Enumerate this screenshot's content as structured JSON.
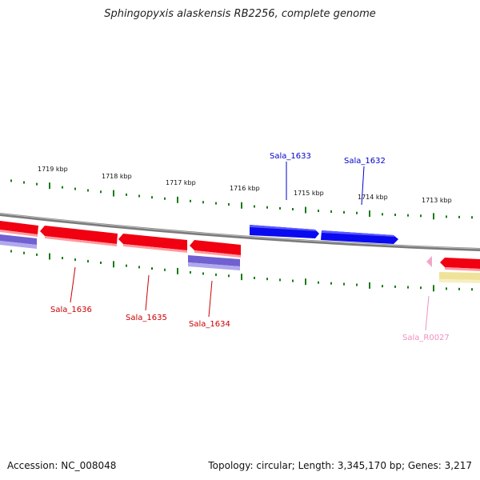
{
  "title": "Sphingopyxis alaskensis RB2256, complete genome",
  "accession": "Accession: NC_008048",
  "topology": "Topology: circular; Length: 3,345,170 bp; Genes: 3,217",
  "colors": {
    "forward_gene": "#0a0af0",
    "reverse_gene": "#f00010",
    "cds_purple": "#6a5acd",
    "rna": "#f4a6c8",
    "misc_yellow": "#efe39a",
    "tick": "#1a7a1a",
    "backbone": "#888888"
  },
  "kbp_labels": [
    "1719 kbp",
    "1718 kbp",
    "1717 kbp",
    "1716 kbp",
    "1715 kbp",
    "1714 kbp",
    "1713 kbp"
  ],
  "genes": [
    {
      "id": "Sala_1633",
      "strand": "forward",
      "color": "#0000cc"
    },
    {
      "id": "Sala_1632",
      "strand": "forward",
      "color": "#0000cc"
    },
    {
      "id": "Sala_1636",
      "strand": "reverse",
      "color": "#cc0000"
    },
    {
      "id": "Sala_1635",
      "strand": "reverse",
      "color": "#cc0000"
    },
    {
      "id": "Sala_1634",
      "strand": "reverse",
      "color": "#cc0000"
    },
    {
      "id": "Sala_R0027",
      "strand": "reverse",
      "color": "#f090c0"
    }
  ]
}
